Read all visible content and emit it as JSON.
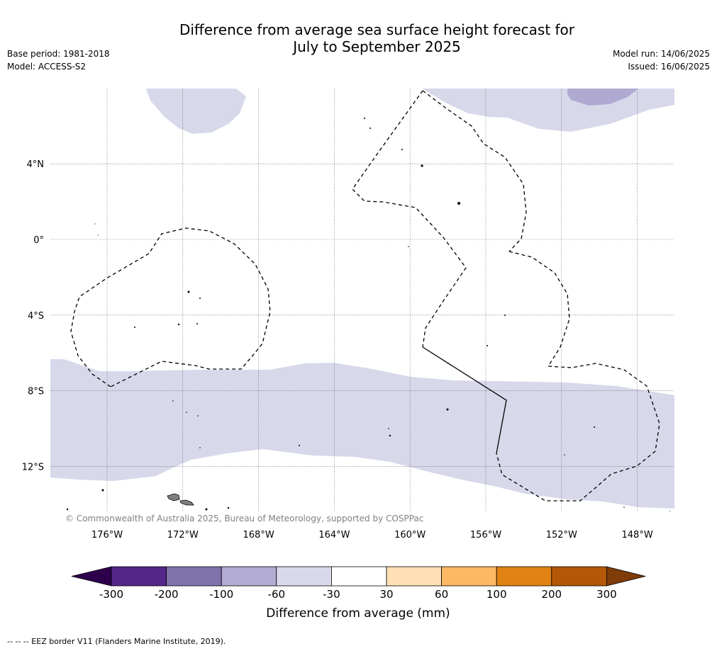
{
  "header": {
    "title_line1": "Difference from average sea surface height forecast for",
    "title_line2": "July to September 2025",
    "base_period": "Base period: 1981-2018",
    "model": "Model: ACCESS-S2",
    "model_run": "Model run: 14/06/2025",
    "issued": "Issued: 16/06/2025"
  },
  "map": {
    "lon_range": [
      -178,
      -145
    ],
    "lat_range": [
      -14.8,
      8
    ],
    "lon_ticks": [
      -176,
      -172,
      -168,
      -164,
      -160,
      -156,
      -152,
      -148
    ],
    "lon_tick_labels": [
      "176°W",
      "172°W",
      "168°W",
      "164°W",
      "160°W",
      "156°W",
      "152°W",
      "148°W"
    ],
    "lat_ticks": [
      4,
      0,
      -4,
      -8,
      -12
    ],
    "lat_tick_labels": [
      "4°N",
      "0°",
      "4°S",
      "8°S",
      "12°S"
    ],
    "copyright": "© Commonwealth of Australia 2025, Bureau of Meteorology, supported by COSPPac",
    "colors": {
      "band_light": "#d7d8ea",
      "band_medium": "#b0a9d1",
      "land": "#808080",
      "gridline": "#555555"
    }
  },
  "colorbar": {
    "label": "Difference from average (mm)",
    "tick_labels": [
      "-300",
      "-200",
      "-100",
      "-60",
      "-30",
      "30",
      "60",
      "100",
      "200",
      "300"
    ],
    "colors": [
      "#2d004b",
      "#542788",
      "#8073ac",
      "#b2abd2",
      "#d8daeb",
      "#ffffff",
      "#fee0b6",
      "#fdb863",
      "#e08214",
      "#b35806",
      "#7f3b08"
    ]
  },
  "footnote": "-- -- -- EEZ border V11 (Flanders Marine Institute, 2019)."
}
